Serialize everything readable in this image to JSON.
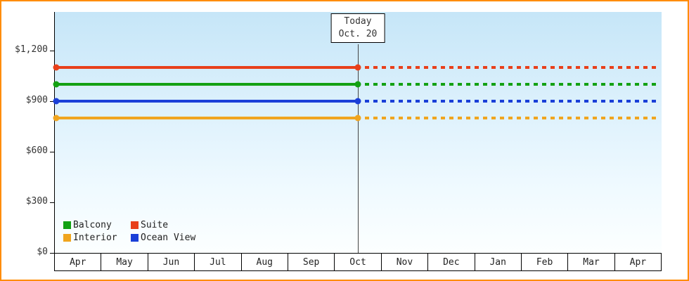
{
  "chart_data": {
    "type": "line",
    "title": "",
    "x_categories": [
      "Apr",
      "May",
      "Jun",
      "Jul",
      "Aug",
      "Sep",
      "Oct",
      "Nov",
      "Dec",
      "Jan",
      "Feb",
      "Mar",
      "Apr"
    ],
    "y_ticks": [
      {
        "value": 0,
        "label": "$0"
      },
      {
        "value": 300,
        "label": "$300"
      },
      {
        "value": 600,
        "label": "$600"
      },
      {
        "value": 900,
        "label": "$900"
      },
      {
        "value": 1200,
        "label": "$1,200"
      }
    ],
    "ylim": [
      0,
      1280
    ],
    "grid": false,
    "today": {
      "line1": "Today",
      "line2": "Oct. 20",
      "x_index": 6
    },
    "series": [
      {
        "name": "Suite",
        "color": "#e8401a",
        "value": 1100
      },
      {
        "name": "Balcony",
        "color": "#13a113",
        "value": 1000
      },
      {
        "name": "Ocean View",
        "color": "#1a3fd8",
        "value": 900
      },
      {
        "name": "Interior",
        "color": "#f0a51f",
        "value": 800
      }
    ],
    "line_style": {
      "solid_before_today": true,
      "dotted_after_today": true
    },
    "legend_position": "bottom-left",
    "legend_order": [
      "Balcony",
      "Suite",
      "Interior",
      "Ocean View"
    ]
  },
  "colors": {
    "frame_border": "#ff8c00",
    "plot_bg_top": "#c6e6f8",
    "plot_bg_bottom": "#fcffff",
    "axis": "#000000",
    "today_line": "#444444"
  }
}
